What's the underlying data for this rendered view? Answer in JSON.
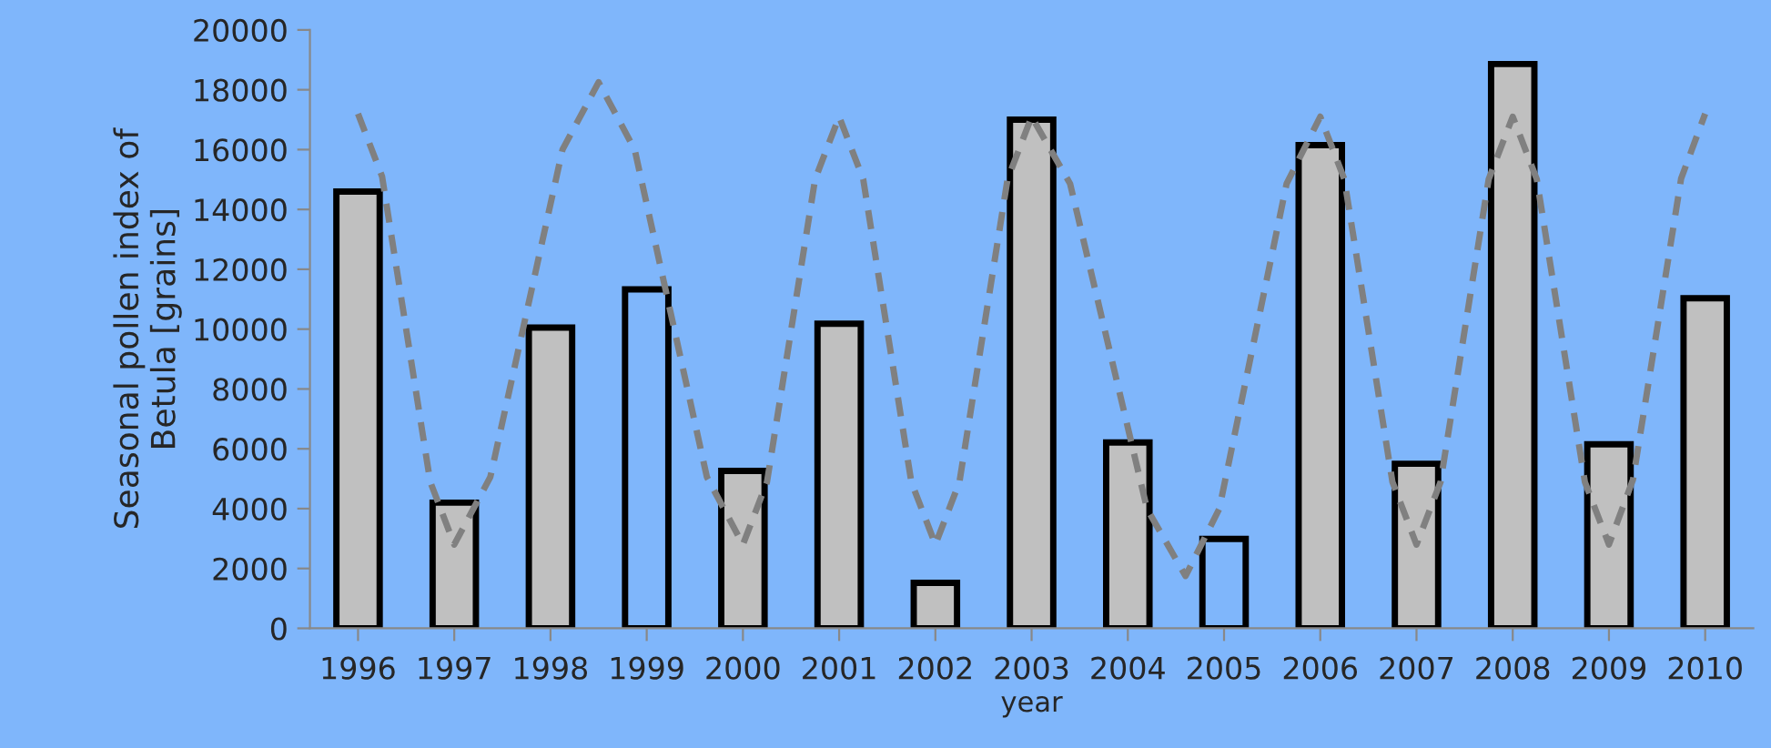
{
  "chart_data": {
    "type": "bar",
    "xlabel": "year",
    "ylabel": "Seasonal pollen index of\nBetula [grains]",
    "x": [
      1996,
      1997,
      1998,
      1999,
      2000,
      2001,
      2002,
      2003,
      2004,
      2005,
      2006,
      2007,
      2008,
      2009,
      2010
    ],
    "values": [
      14600,
      4200,
      10050,
      11330,
      5260,
      10180,
      1520,
      17000,
      6210,
      2990,
      16150,
      5500,
      18860,
      6150,
      11030
    ],
    "colors": [
      "#c0c0c0",
      "#c0c0c0",
      "#c0c0c0",
      "#7fb6fb",
      "#c0c0c0",
      "#c0c0c0",
      "#c0c0c0",
      "#c0c0c0",
      "#c0c0c0",
      "#7fb6fb",
      "#c0c0c0",
      "#c0c0c0",
      "#c0c0c0",
      "#c0c0c0",
      "#c0c0c0"
    ],
    "series": [
      {
        "type": "line",
        "color": "#808080",
        "line_style": "dashed",
        "x": [
          1996,
          1996.25,
          1996.5,
          1996.75,
          1997,
          1997.375,
          1997.75,
          1998.125,
          1998.5,
          1998.875,
          1999.25,
          1999.625,
          2000,
          2000.25,
          2000.5,
          2000.75,
          2001,
          2001.25,
          2001.5,
          2001.75,
          2002,
          2002.25,
          2002.5,
          2002.75,
          2003,
          2003.4,
          2003.8,
          2004.2,
          2004.6,
          2004.95,
          2005.3,
          2005.65,
          2006,
          2006.25,
          2006.5,
          2006.75,
          2007,
          2007.25,
          2007.5,
          2007.75,
          2008,
          2008.25,
          2008.5,
          2008.75,
          2009,
          2009.25,
          2009.5,
          2009.75,
          2010
        ],
        "values": [
          17200,
          15100,
          10000,
          4900,
          2800,
          5060,
          10530,
          16000,
          18250,
          16000,
          10530,
          5060,
          2800,
          4890,
          9950,
          15010,
          17100,
          15010,
          9950,
          4890,
          2800,
          4890,
          9950,
          15010,
          17100,
          14860,
          9430,
          3990,
          1750,
          3990,
          9430,
          14860,
          17100,
          15010,
          9950,
          4890,
          2800,
          4890,
          9950,
          15010,
          17100,
          15010,
          9950,
          4890,
          2800,
          4970,
          10000,
          15030,
          17200
        ]
      }
    ],
    "xlim": [
      1995.5,
      2010.5
    ],
    "xticks": [
      1996,
      1997,
      1998,
      1999,
      2000,
      2001,
      2002,
      2003,
      2004,
      2005,
      2006,
      2007,
      2008,
      2009,
      2010
    ],
    "ylim": [
      0,
      20000
    ],
    "yticks": [
      0,
      2000,
      4000,
      6000,
      8000,
      10000,
      12000,
      14000,
      16000,
      18000,
      20000
    ],
    "grid": false,
    "legend": false
  }
}
